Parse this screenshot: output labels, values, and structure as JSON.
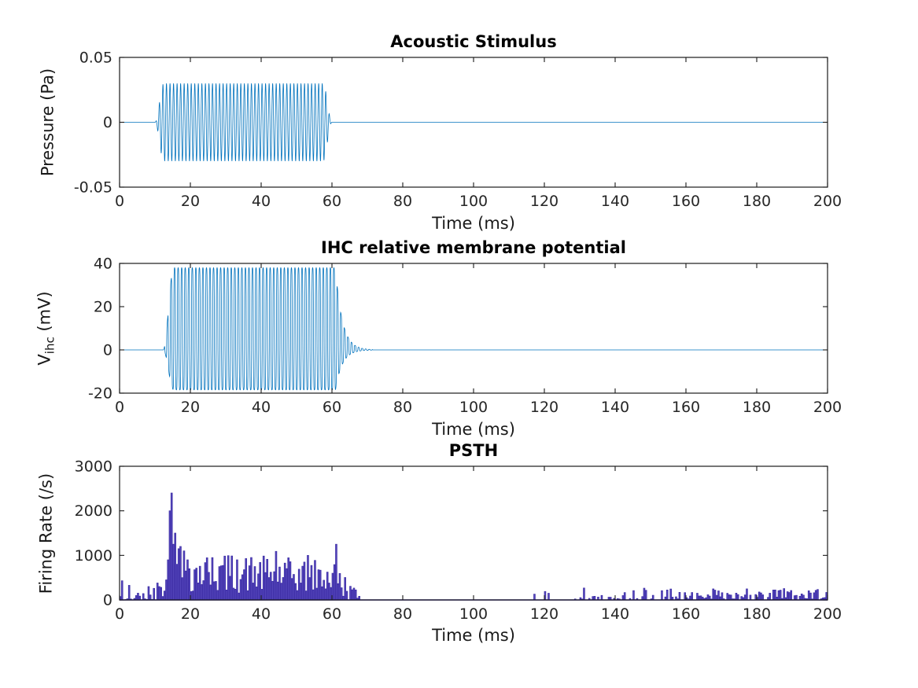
{
  "figure": {
    "background": "#ffffff",
    "axis_color": "#1a1a1a",
    "tick_label_color": "#262626",
    "tick_font_px": 19
  },
  "chart_data": [
    {
      "id": "acoustic-stimulus",
      "type": "line",
      "title": "Acoustic Stimulus",
      "xlabel": "Time (ms)",
      "ylabel": "Pressure (Pa)",
      "xlim": [
        0,
        200
      ],
      "ylim": [
        -0.05,
        0.05
      ],
      "xticks": [
        0,
        20,
        40,
        60,
        80,
        100,
        120,
        140,
        160,
        180,
        200
      ],
      "yticks": [
        -0.05,
        0,
        0.05
      ],
      "ytick_labels": [
        "-0.05",
        "0",
        "0.05"
      ],
      "grid": false,
      "line_color": "#0072BD",
      "signal": {
        "kind": "tone_burst",
        "frequency_khz": 1,
        "amplitude_pa": 0.03,
        "onset_ms": 10,
        "offset_ms": 60,
        "rise_ms": 2.5,
        "fall_ms": 2.5,
        "baseline": 0
      }
    },
    {
      "id": "ihc-potential",
      "type": "line",
      "title": "IHC relative membrane potential",
      "xlabel": "Time (ms)",
      "ylabel_base": "V",
      "ylabel_sub": "ihc",
      "ylabel_rest": " (mV)",
      "xlim": [
        0,
        200
      ],
      "ylim": [
        -20,
        40
      ],
      "xticks": [
        0,
        20,
        40,
        60,
        80,
        100,
        120,
        140,
        160,
        180,
        200
      ],
      "yticks": [
        -20,
        0,
        20,
        40
      ],
      "ytick_labels": [
        "-20",
        "0",
        "20",
        "40"
      ],
      "grid": false,
      "line_color": "#0072BD",
      "signal": {
        "kind": "saturating_tone_response",
        "frequency_khz": 1,
        "peak_mv": 38,
        "trough_mv": -18.5,
        "onset_ms": 12.3,
        "rise_ms": 3,
        "sustain_end_ms": 61,
        "decay_tau_ms": 1.9,
        "saturation": 2.5,
        "baseline": 0
      }
    },
    {
      "id": "psth",
      "type": "bar",
      "title": "PSTH",
      "xlabel": "Time (ms)",
      "ylabel": "Firing Rate (/s)",
      "xlim": [
        0,
        200
      ],
      "ylim": [
        0,
        3000
      ],
      "xticks": [
        0,
        20,
        40,
        60,
        80,
        100,
        120,
        140,
        160,
        180,
        200
      ],
      "yticks": [
        0,
        1000,
        2000,
        3000
      ],
      "ytick_labels": [
        "0",
        "1000",
        "2000",
        "3000"
      ],
      "grid": false,
      "bar_fill": "#5647BC",
      "bar_edge": "#3A2BA3",
      "bin_ms": 0.5,
      "rng_seed": 42,
      "pre_stimulus_peaks": [
        [
          0.5,
          430
        ],
        [
          8,
          300
        ],
        [
          9.5,
          260
        ],
        [
          10.5,
          380
        ],
        [
          11,
          300
        ]
      ],
      "onset_peaks": [
        [
          12.5,
          200
        ],
        [
          13,
          450
        ],
        [
          13.5,
          900
        ],
        [
          14,
          2000
        ],
        [
          14.5,
          2400
        ],
        [
          15,
          1250
        ],
        [
          15.5,
          1500
        ],
        [
          16,
          800
        ],
        [
          16.5,
          1150
        ],
        [
          17,
          1200
        ],
        [
          17.5,
          500
        ],
        [
          18,
          1100
        ],
        [
          18.5,
          650
        ],
        [
          19,
          900
        ],
        [
          19.5,
          700
        ]
      ],
      "sustained_peaks": [
        [
          26,
          950
        ],
        [
          33,
          900
        ],
        [
          44,
          1090
        ],
        [
          53,
          1000
        ],
        [
          61,
          1250
        ]
      ],
      "late_peaks": [
        [
          117,
          130
        ],
        [
          120,
          190
        ],
        [
          121,
          150
        ]
      ],
      "segments": [
        {
          "from": 0,
          "to": 12.5,
          "kind": "random",
          "density": 0.8,
          "max": 450,
          "pow": 2.2
        },
        {
          "from": 12.5,
          "to": 20,
          "kind": "random",
          "density": 0.9,
          "max": 500,
          "pow": 1.5
        },
        {
          "from": 20,
          "to": 62,
          "kind": "sustained",
          "base_start": 760,
          "base_end": 600,
          "max": 1250
        },
        {
          "from": 62,
          "to": 68,
          "kind": "taper",
          "start_max": 750,
          "end_max": 80
        },
        {
          "from": 68,
          "to": 128,
          "kind": "zero"
        },
        {
          "from": 128,
          "to": 200,
          "kind": "spontaneous",
          "density": 0.85,
          "max": 270
        }
      ]
    }
  ]
}
